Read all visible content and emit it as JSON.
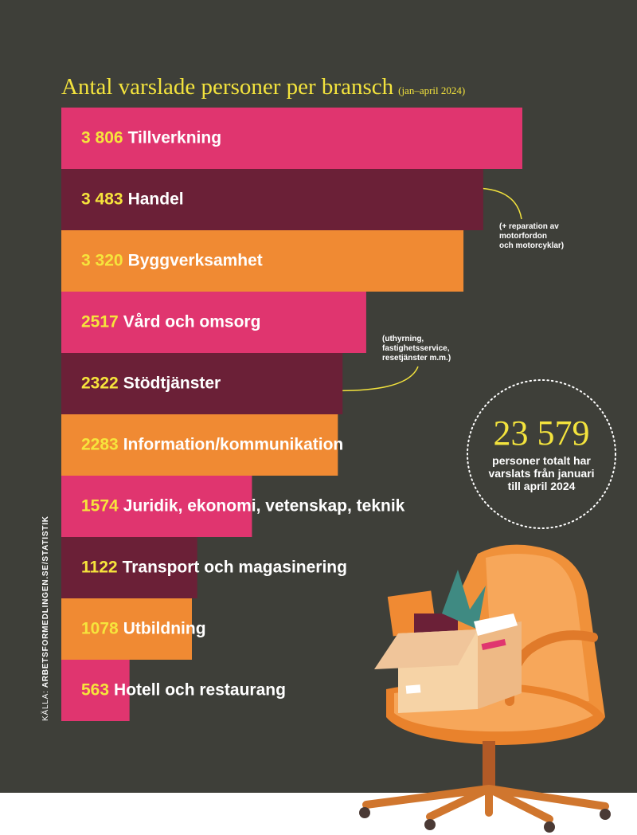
{
  "chart_data": {
    "type": "bar",
    "orientation": "horizontal",
    "title": "Antal varslade personer per bransch",
    "subtitle": "(jan–april 2024)",
    "categories": [
      "Tillverkning",
      "Handel",
      "Byggverksamhet",
      "Vård och omsorg",
      "Stödtjänster",
      "Information/kommunikation",
      "Juridik, ekonomi, vetenskap, teknik",
      "Transport och magasinering",
      "Utbildning",
      "Hotell och restaurang"
    ],
    "values": [
      3806,
      3483,
      3320,
      2517,
      2322,
      2283,
      1574,
      1122,
      1078,
      563
    ],
    "value_labels": [
      "3 806",
      "3 483",
      "3 320",
      "2517",
      "2322",
      "2283",
      "1574",
      "1122",
      "1078",
      "563"
    ],
    "colors": [
      "#e0356f",
      "#6b2037",
      "#f08a33",
      "#e0356f",
      "#6b2037",
      "#f08a33",
      "#e0356f",
      "#6b2037",
      "#f08a33",
      "#e0356f"
    ],
    "annotations": [
      {
        "lines": [
          "(+ reparation av",
          "motorfordon",
          "och motorcyklar)"
        ]
      },
      {
        "lines": [
          "(uthyrning,",
          "fastighetsservice,",
          "resetjänster m.m.)"
        ]
      }
    ],
    "total": {
      "value_label": "23 579",
      "lines": [
        "personer totalt har",
        "varslats från januari",
        "till april 2024"
      ]
    },
    "source_label": "KÄLLA:",
    "source": "ARBETSFORMEDLINGEN.SE/STATISTIK"
  }
}
